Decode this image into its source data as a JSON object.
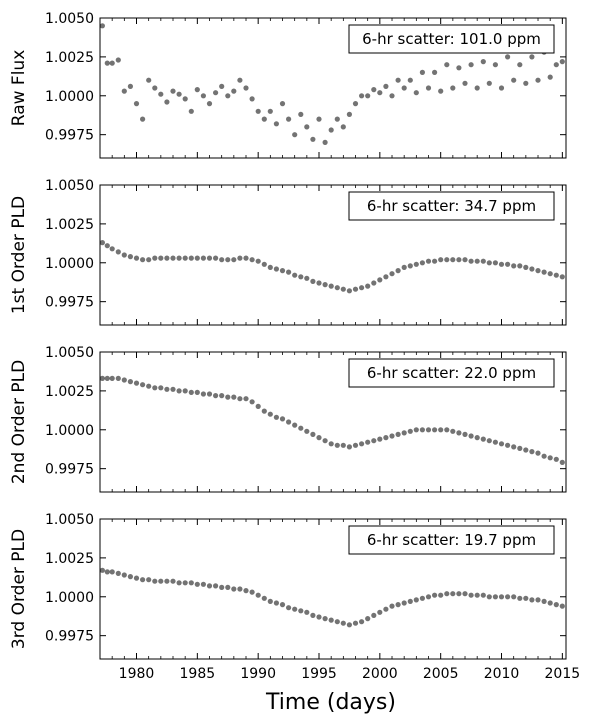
{
  "figure": {
    "xlabel": "Time (days)"
  },
  "chart_data": [
    {
      "type": "scatter",
      "ylabel": "Raw Flux",
      "annotation": "6-hr scatter: 101.0 ppm",
      "xlim": [
        1977.0,
        2015.3
      ],
      "ylim": [
        0.996,
        1.005
      ],
      "yticks": [
        "0.9975",
        "1.0000",
        "1.0025",
        "1.0050"
      ],
      "xticks": [
        "1980",
        "1985",
        "1990",
        "1995",
        "2000",
        "2005",
        "2010",
        "2015"
      ],
      "x": [
        1977.2,
        1977.6,
        1978.0,
        1978.5,
        1979.0,
        1979.5,
        1980.0,
        1980.5,
        1981.0,
        1981.5,
        1982.0,
        1982.5,
        1983.0,
        1983.5,
        1984.0,
        1984.5,
        1985.0,
        1985.5,
        1986.0,
        1986.5,
        1987.0,
        1987.5,
        1988.0,
        1988.5,
        1989.0,
        1989.5,
        1990.0,
        1990.5,
        1991.0,
        1991.5,
        1992.0,
        1992.5,
        1993.0,
        1993.5,
        1994.0,
        1994.5,
        1995.0,
        1995.5,
        1996.0,
        1996.5,
        1997.0,
        1997.5,
        1998.0,
        1998.5,
        1999.0,
        1999.5,
        2000.0,
        2000.5,
        2001.0,
        2001.5,
        2002.0,
        2002.5,
        2003.0,
        2003.5,
        2004.0,
        2004.5,
        2005.0,
        2005.5,
        2006.0,
        2006.5,
        2007.0,
        2007.5,
        2008.0,
        2008.5,
        2009.0,
        2009.5,
        2010.0,
        2010.5,
        2011.0,
        2011.5,
        2012.0,
        2012.5,
        2013.0,
        2013.5,
        2014.0,
        2014.5,
        2015.0
      ],
      "y": [
        1.0045,
        1.0021,
        1.0021,
        1.0023,
        1.0003,
        1.0006,
        0.9995,
        0.9985,
        1.001,
        1.0005,
        1.0001,
        0.9996,
        1.0003,
        1.0001,
        0.9998,
        0.999,
        1.0004,
        1.0,
        0.9995,
        1.0002,
        1.0006,
        1.0,
        1.0003,
        1.001,
        1.0005,
        0.9998,
        0.999,
        0.9985,
        0.999,
        0.9982,
        0.9995,
        0.9985,
        0.9975,
        0.9988,
        0.998,
        0.9972,
        0.9985,
        0.997,
        0.9978,
        0.9985,
        0.998,
        0.9988,
        0.9995,
        1.0,
        1.0,
        1.0004,
        1.0002,
        1.0006,
        1.0,
        1.001,
        1.0005,
        1.001,
        1.0002,
        1.0015,
        1.0005,
        1.0015,
        1.0003,
        1.002,
        1.0005,
        1.0018,
        1.0008,
        1.002,
        1.0005,
        1.0022,
        1.0008,
        1.002,
        1.0005,
        1.0025,
        1.001,
        1.002,
        1.0008,
        1.0025,
        1.001,
        1.0028,
        1.0012,
        1.002,
        1.0022
      ]
    },
    {
      "type": "scatter",
      "ylabel": "1st Order PLD",
      "annotation": "6-hr scatter: 34.7 ppm",
      "xlim": [
        1977.0,
        2015.3
      ],
      "ylim": [
        0.996,
        1.005
      ],
      "yticks": [
        "0.9975",
        "1.0000",
        "1.0025",
        "1.0050"
      ],
      "xticks": [
        "1980",
        "1985",
        "1990",
        "1995",
        "2000",
        "2005",
        "2010",
        "2015"
      ],
      "x": [
        1977.2,
        1977.6,
        1978.0,
        1978.5,
        1979.0,
        1979.5,
        1980.0,
        1980.5,
        1981.0,
        1981.5,
        1982.0,
        1982.5,
        1983.0,
        1983.5,
        1984.0,
        1984.5,
        1985.0,
        1985.5,
        1986.0,
        1986.5,
        1987.0,
        1987.5,
        1988.0,
        1988.5,
        1989.0,
        1989.5,
        1990.0,
        1990.5,
        1991.0,
        1991.5,
        1992.0,
        1992.5,
        1993.0,
        1993.5,
        1994.0,
        1994.5,
        1995.0,
        1995.5,
        1996.0,
        1996.5,
        1997.0,
        1997.5,
        1998.0,
        1998.5,
        1999.0,
        1999.5,
        2000.0,
        2000.5,
        2001.0,
        2001.5,
        2002.0,
        2002.5,
        2003.0,
        2003.5,
        2004.0,
        2004.5,
        2005.0,
        2005.5,
        2006.0,
        2006.5,
        2007.0,
        2007.5,
        2008.0,
        2008.5,
        2009.0,
        2009.5,
        2010.0,
        2010.5,
        2011.0,
        2011.5,
        2012.0,
        2012.5,
        2013.0,
        2013.5,
        2014.0,
        2014.5,
        2015.0
      ],
      "y": [
        1.0013,
        1.0011,
        1.0009,
        1.0007,
        1.0005,
        1.0004,
        1.0003,
        1.0002,
        1.0002,
        1.0003,
        1.0003,
        1.0003,
        1.0003,
        1.0003,
        1.0003,
        1.0003,
        1.0003,
        1.0003,
        1.0003,
        1.0003,
        1.0002,
        1.0002,
        1.0002,
        1.0003,
        1.0003,
        1.0002,
        1.0001,
        0.9999,
        0.9997,
        0.9996,
        0.9995,
        0.9994,
        0.9992,
        0.9991,
        0.999,
        0.9988,
        0.9987,
        0.9986,
        0.9985,
        0.9984,
        0.9983,
        0.9982,
        0.9983,
        0.9984,
        0.9985,
        0.9987,
        0.9989,
        0.9991,
        0.9993,
        0.9995,
        0.9997,
        0.9998,
        0.9999,
        1.0,
        1.0001,
        1.0001,
        1.0002,
        1.0002,
        1.0002,
        1.0002,
        1.0002,
        1.0001,
        1.0001,
        1.0001,
        1.0,
        1.0,
        0.9999,
        0.9999,
        0.9998,
        0.9998,
        0.9997,
        0.9996,
        0.9995,
        0.9994,
        0.9993,
        0.9992,
        0.9991
      ]
    },
    {
      "type": "scatter",
      "ylabel": "2nd Order PLD",
      "annotation": "6-hr scatter: 22.0 ppm",
      "xlim": [
        1977.0,
        2015.3
      ],
      "ylim": [
        0.996,
        1.005
      ],
      "yticks": [
        "0.9975",
        "1.0000",
        "1.0025",
        "1.0050"
      ],
      "xticks": [
        "1980",
        "1985",
        "1990",
        "1995",
        "2000",
        "2005",
        "2010",
        "2015"
      ],
      "x": [
        1977.2,
        1977.6,
        1978.0,
        1978.5,
        1979.0,
        1979.5,
        1980.0,
        1980.5,
        1981.0,
        1981.5,
        1982.0,
        1982.5,
        1983.0,
        1983.5,
        1984.0,
        1984.5,
        1985.0,
        1985.5,
        1986.0,
        1986.5,
        1987.0,
        1987.5,
        1988.0,
        1988.5,
        1989.0,
        1989.5,
        1990.0,
        1990.5,
        1991.0,
        1991.5,
        1992.0,
        1992.5,
        1993.0,
        1993.5,
        1994.0,
        1994.5,
        1995.0,
        1995.5,
        1996.0,
        1996.5,
        1997.0,
        1997.5,
        1998.0,
        1998.5,
        1999.0,
        1999.5,
        2000.0,
        2000.5,
        2001.0,
        2001.5,
        2002.0,
        2002.5,
        2003.0,
        2003.5,
        2004.0,
        2004.5,
        2005.0,
        2005.5,
        2006.0,
        2006.5,
        2007.0,
        2007.5,
        2008.0,
        2008.5,
        2009.0,
        2009.5,
        2010.0,
        2010.5,
        2011.0,
        2011.5,
        2012.0,
        2012.5,
        2013.0,
        2013.5,
        2014.0,
        2014.5,
        2015.0
      ],
      "y": [
        1.0033,
        1.0033,
        1.0033,
        1.0033,
        1.0032,
        1.0031,
        1.003,
        1.0029,
        1.0028,
        1.0027,
        1.0027,
        1.0026,
        1.0026,
        1.0025,
        1.0025,
        1.0024,
        1.0024,
        1.0023,
        1.0023,
        1.0022,
        1.0022,
        1.0021,
        1.0021,
        1.002,
        1.002,
        1.0018,
        1.0015,
        1.0012,
        1.001,
        1.0008,
        1.0007,
        1.0005,
        1.0003,
        1.0001,
        0.9999,
        0.9997,
        0.9995,
        0.9993,
        0.9991,
        0.999,
        0.999,
        0.9989,
        0.999,
        0.9991,
        0.9992,
        0.9993,
        0.9994,
        0.9995,
        0.9996,
        0.9997,
        0.9998,
        0.9999,
        1.0,
        1.0,
        1.0,
        1.0,
        1.0,
        1.0,
        0.9999,
        0.9998,
        0.9997,
        0.9996,
        0.9995,
        0.9994,
        0.9993,
        0.9992,
        0.9991,
        0.999,
        0.9989,
        0.9988,
        0.9987,
        0.9986,
        0.9985,
        0.9983,
        0.9982,
        0.9981,
        0.9979
      ]
    },
    {
      "type": "scatter",
      "ylabel": "3rd Order PLD",
      "annotation": "6-hr scatter: 19.7 ppm",
      "xlim": [
        1977.0,
        2015.3
      ],
      "ylim": [
        0.996,
        1.005
      ],
      "yticks": [
        "0.9975",
        "1.0000",
        "1.0025",
        "1.0050"
      ],
      "xticks": [
        "1980",
        "1985",
        "1990",
        "1995",
        "2000",
        "2005",
        "2010",
        "2015"
      ],
      "x": [
        1977.2,
        1977.6,
        1978.0,
        1978.5,
        1979.0,
        1979.5,
        1980.0,
        1980.5,
        1981.0,
        1981.5,
        1982.0,
        1982.5,
        1983.0,
        1983.5,
        1984.0,
        1984.5,
        1985.0,
        1985.5,
        1986.0,
        1986.5,
        1987.0,
        1987.5,
        1988.0,
        1988.5,
        1989.0,
        1989.5,
        1990.0,
        1990.5,
        1991.0,
        1991.5,
        1992.0,
        1992.5,
        1993.0,
        1993.5,
        1994.0,
        1994.5,
        1995.0,
        1995.5,
        1996.0,
        1996.5,
        1997.0,
        1997.5,
        1998.0,
        1998.5,
        1999.0,
        1999.5,
        2000.0,
        2000.5,
        2001.0,
        2001.5,
        2002.0,
        2002.5,
        2003.0,
        2003.5,
        2004.0,
        2004.5,
        2005.0,
        2005.5,
        2006.0,
        2006.5,
        2007.0,
        2007.5,
        2008.0,
        2008.5,
        2009.0,
        2009.5,
        2010.0,
        2010.5,
        2011.0,
        2011.5,
        2012.0,
        2012.5,
        2013.0,
        2013.5,
        2014.0,
        2014.5,
        2015.0
      ],
      "y": [
        1.0017,
        1.0016,
        1.0016,
        1.0015,
        1.0014,
        1.0013,
        1.0012,
        1.0011,
        1.0011,
        1.001,
        1.001,
        1.001,
        1.001,
        1.0009,
        1.0009,
        1.0009,
        1.0008,
        1.0008,
        1.0007,
        1.0007,
        1.0006,
        1.0006,
        1.0005,
        1.0005,
        1.0004,
        1.0003,
        1.0001,
        0.9999,
        0.9997,
        0.9996,
        0.9995,
        0.9993,
        0.9992,
        0.9991,
        0.999,
        0.9988,
        0.9987,
        0.9986,
        0.9985,
        0.9984,
        0.9983,
        0.9982,
        0.9983,
        0.9984,
        0.9986,
        0.9988,
        0.999,
        0.9992,
        0.9994,
        0.9995,
        0.9996,
        0.9997,
        0.9998,
        0.9999,
        1.0,
        1.0001,
        1.0001,
        1.0002,
        1.0002,
        1.0002,
        1.0002,
        1.0001,
        1.0001,
        1.0001,
        1.0,
        1.0,
        1.0,
        1.0,
        1.0,
        0.9999,
        0.9999,
        0.9998,
        0.9998,
        0.9997,
        0.9996,
        0.9995,
        0.9994
      ]
    }
  ]
}
